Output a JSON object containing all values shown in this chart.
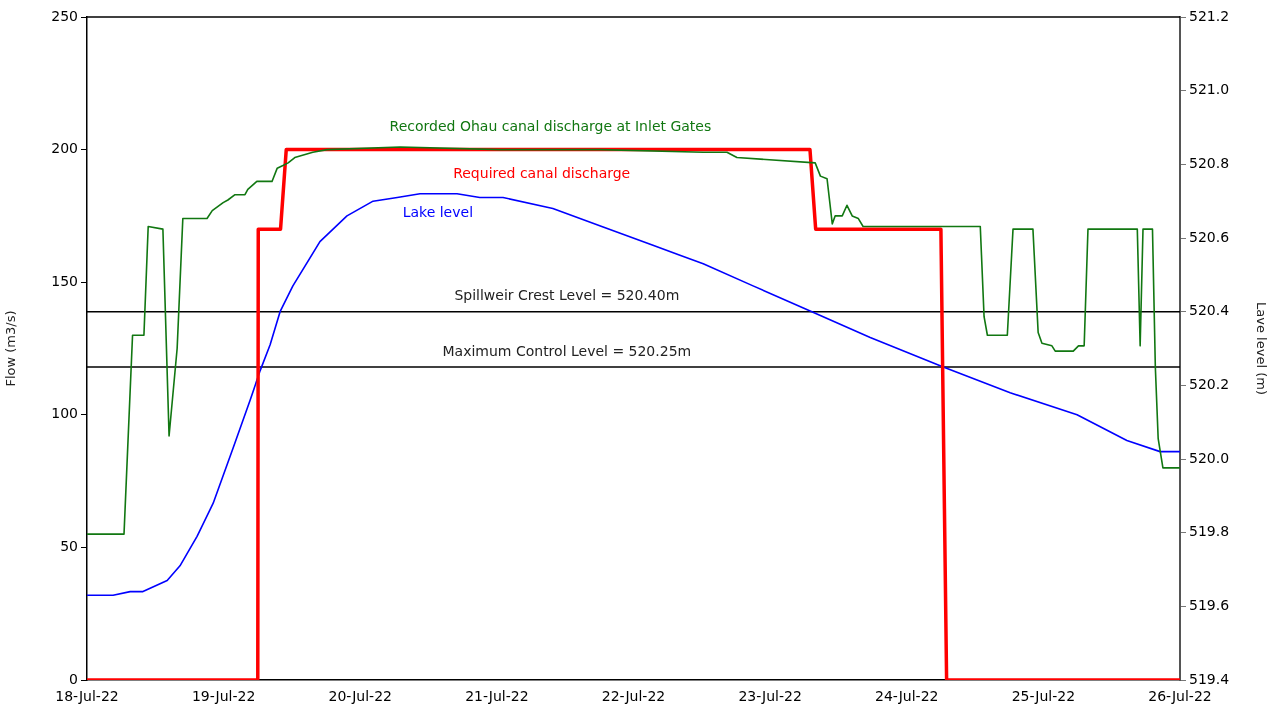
{
  "chart_data": {
    "type": "line",
    "ylabel": "Flow (m3/s)",
    "y2label": "Lave level (m)",
    "xlim": [
      "--07-18",
      "--07-26"
    ],
    "xticks": [
      {
        "value": "--07-18",
        "label": "18-Jul-22"
      },
      {
        "value": "--07-19",
        "label": "19-Jul-22"
      },
      {
        "value": "--07-20",
        "label": "20-Jul-22"
      },
      {
        "value": "--07-21",
        "label": "21-Jul-22"
      },
      {
        "value": "--07-22",
        "label": "22-Jul-22"
      },
      {
        "value": "--07-23",
        "label": "23-Jul-22"
      },
      {
        "value": "--07-24",
        "label": "24-Jul-22"
      },
      {
        "value": "--07-25",
        "label": "25-Jul-22"
      },
      {
        "value": "--07-26",
        "label": "26-Jul-22"
      }
    ],
    "ylim": [
      0,
      250
    ],
    "yticks": [
      0,
      50,
      100,
      150,
      200,
      250
    ],
    "y2lim": [
      519.4,
      521.2
    ],
    "y2ticks": [
      519.4,
      519.6,
      519.8,
      {
        "value": 520,
        "label": "520.0"
      },
      520.2,
      520.4,
      520.6,
      520.8,
      {
        "value": 521,
        "label": "521.0"
      },
      521.2
    ],
    "grid": false,
    "legend": false,
    "marker": "none",
    "ref_lines": [
      {
        "axis": "y2",
        "value": 520.4,
        "label": "Spillweir Crest Level = 520.40m",
        "color": "#000000"
      },
      {
        "axis": "y2",
        "value": 520.25,
        "label": "Maximum Control Level = 520.25m",
        "color": "#000000"
      }
    ],
    "series": [
      {
        "name": "Recorded Ohau canal discharge at Inlet Gates",
        "color": "#117711",
        "x": [
          "--07-18T00:00",
          "--07-18T06:30",
          "--07-18T08:00",
          "--07-18T10:00",
          "--07-18T10:45",
          "--07-18T13:20",
          "--07-18T14:25",
          "--07-18T15:50",
          "--07-18T16:50",
          "--07-18T21:05",
          "--07-18T22:00",
          "--07-18T23:55",
          "--07-19T00:45",
          "--07-19T02:00",
          "--07-19T03:45",
          "--07-19T04:15",
          "--07-19T05:50",
          "--07-19T08:30",
          "--07-19T09:25",
          "--07-19T10:25",
          "--07-19T11:20",
          "--07-19T12:30",
          "--07-19T15:40",
          "--07-19T18:10",
          "--07-20T07:00",
          "--07-21T00:30",
          "--07-21T18:10",
          "--07-22T12:15",
          "--07-22T16:25",
          "--07-22T18:10",
          "--07-23T07:55",
          "--07-23T08:50",
          "--07-23T10:00",
          "--07-23T10:55",
          "--07-23T11:25",
          "--07-23T12:40",
          "--07-23T13:30",
          "--07-23T14:25",
          "--07-23T15:30",
          "--07-23T16:20",
          "--07-24T12:55",
          "--07-24T13:35",
          "--07-24T14:10",
          "--07-24T17:40",
          "--07-24T18:40",
          "--07-24T22:10",
          "--07-24T23:05",
          "--07-24T23:45",
          "--07-25T01:30",
          "--07-25T02:05",
          "--07-25T05:15",
          "--07-25T06:10",
          "--07-25T07:10",
          "--07-25T07:50",
          "--07-25T16:30",
          "--07-25T17:00",
          "--07-25T17:30",
          "--07-25T19:10",
          "--07-25T19:40",
          "--07-25T20:10",
          "--07-25T21:00",
          "--07-26T00:00"
        ],
        "values": [
          55,
          55,
          130,
          130,
          171,
          170,
          92,
          125,
          174,
          174,
          177,
          180,
          181,
          183,
          183,
          185,
          188,
          188,
          193,
          194,
          195,
          197,
          199,
          200,
          201,
          200,
          200,
          199,
          199,
          197,
          195,
          190,
          189,
          172,
          175,
          175,
          179,
          175,
          174,
          171,
          171,
          137,
          130,
          130,
          170,
          170,
          131,
          127,
          126,
          124,
          124,
          126,
          126,
          170,
          170,
          126,
          170,
          170,
          118,
          91,
          80,
          80
        ]
      },
      {
        "name": "Required canal discharge",
        "color": "#ff0000",
        "x": [
          "--07-18T00:00",
          "--07-19T06:00",
          "--07-19T06:05",
          "--07-19T10:00",
          "--07-19T11:00",
          "--07-23T07:00",
          "--07-23T08:00",
          "--07-24T06:00",
          "--07-24T07:00",
          "--07-26T00:00"
        ],
        "values": [
          0,
          0,
          170,
          170,
          200,
          200,
          170,
          170,
          0,
          0
        ]
      },
      {
        "name": "Lake level",
        "color": "#0000ff",
        "axis": "y2",
        "x": [
          "--07-18T00:00",
          "--07-18T04:35",
          "--07-18T07:35",
          "--07-18T09:50",
          "--07-18T14:05",
          "--07-18T16:20",
          "--07-18T19:20",
          "--07-18T22:10",
          "--07-19T01:40",
          "--07-19T04:40",
          "--07-19T06:25",
          "--07-19T08:10",
          "--07-19T09:55",
          "--07-19T12:10",
          "--07-19T16:55",
          "--07-19T21:40",
          "--07-20T02:15",
          "--07-20T06:30",
          "--07-20T10:30",
          "--07-20T17:00",
          "--07-20T21:00",
          "--07-21T01:05",
          "--07-21T09:50",
          "--07-21T18:40",
          "--07-22T03:25",
          "--07-22T12:15",
          "--07-22T21:00",
          "--07-23T05:50",
          "--07-23T17:35",
          "--07-24T06:25",
          "--07-24T18:10",
          "--07-25T05:55",
          "--07-25T14:40",
          "--07-25T20:30",
          "--07-26T00:00"
        ],
        "values": [
          519.63,
          519.63,
          519.64,
          519.64,
          519.67,
          519.71,
          519.79,
          519.88,
          520.03,
          520.16,
          520.24,
          520.31,
          520.4,
          520.47,
          520.59,
          520.66,
          520.7,
          520.71,
          520.72,
          520.72,
          520.71,
          520.71,
          520.68,
          520.63,
          520.58,
          520.53,
          520.47,
          520.41,
          520.33,
          520.25,
          520.18,
          520.12,
          520.05,
          520.02,
          520.02
        ]
      }
    ]
  }
}
